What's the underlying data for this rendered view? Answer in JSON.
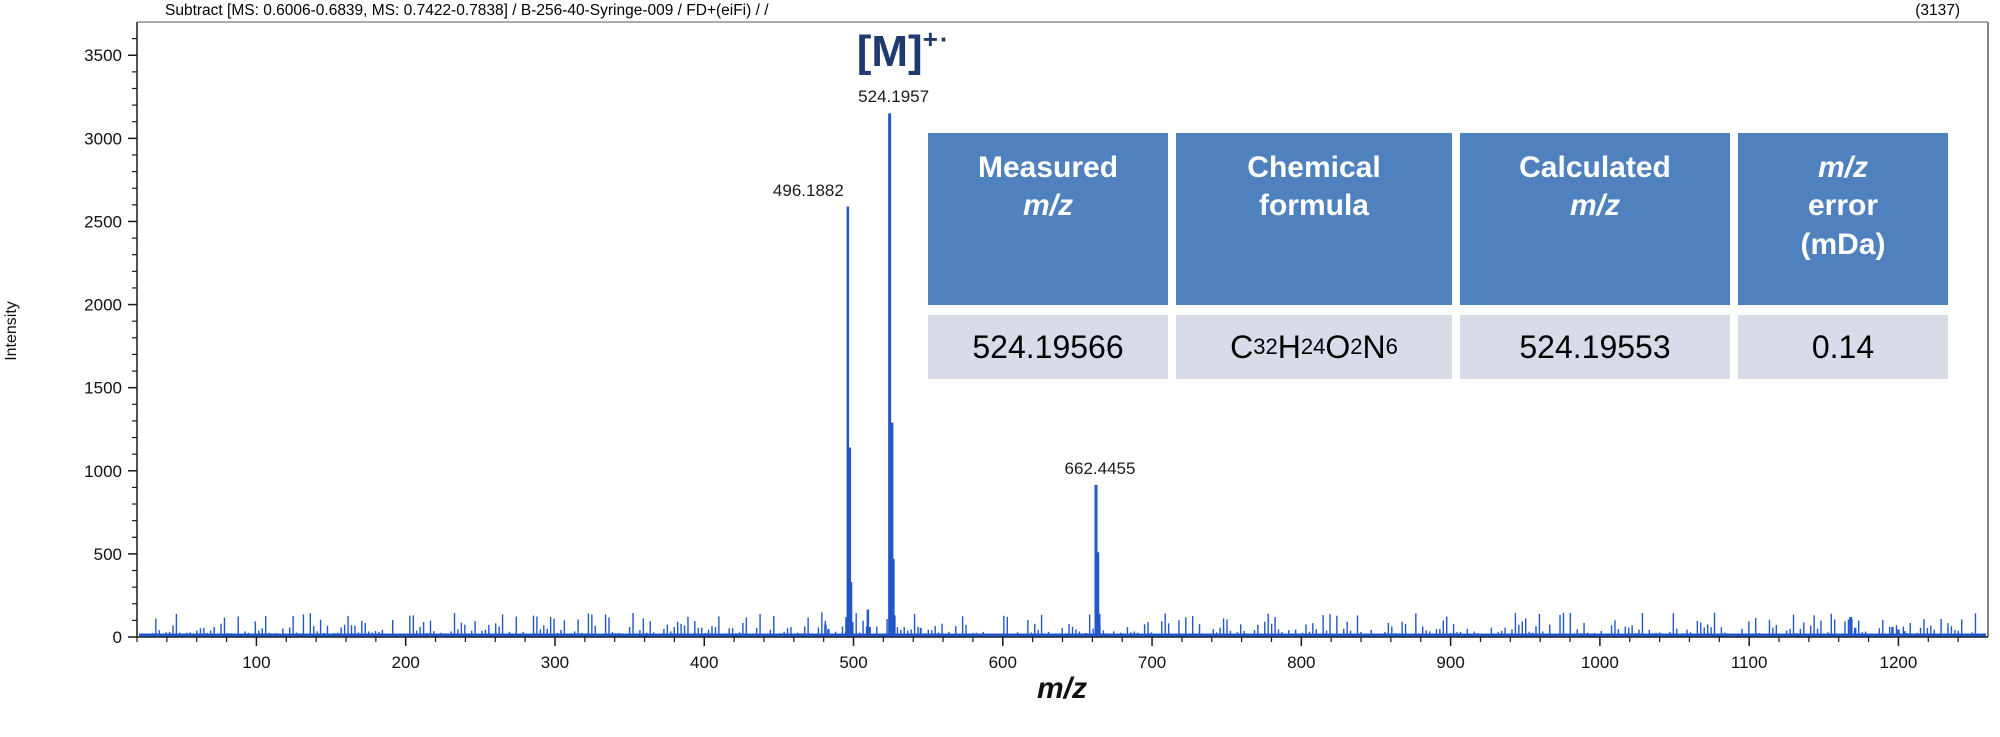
{
  "header": {
    "title": "Subtract [MS: 0.6006-0.6839, MS: 0.7422-0.7838] / B-256-40-Syringe-009 / FD+(eiFi) /  /",
    "scan_count": "(3137)"
  },
  "annotation": {
    "text": "[M]",
    "charge": "+·",
    "anchor_mz": 524.1957
  },
  "chart_data": {
    "type": "bar",
    "subtype": "mass-spectrum-stick-plot",
    "title": "",
    "xlabel": "m/z",
    "ylabel": "Intensity",
    "x_range": [
      20,
      1260
    ],
    "y_range": [
      0,
      3700
    ],
    "x_ticks": [
      100,
      200,
      300,
      400,
      500,
      600,
      700,
      800,
      900,
      1000,
      1100,
      1200
    ],
    "y_ticks": [
      0,
      500,
      1000,
      1500,
      2000,
      2500,
      3000,
      3500
    ],
    "x_minor_step": 20,
    "y_minor_step": 100,
    "grid": false,
    "line_color": "#2257c9",
    "baseline_noise_max": 22,
    "peaks": [
      {
        "mz": 481.2,
        "intensity": 75,
        "w": 2.5
      },
      {
        "mz": 483.2,
        "intensity": 45,
        "w": 2.5
      },
      {
        "mz": 495.3,
        "intensity": 120,
        "w": 2.5
      },
      {
        "mz": 496.1882,
        "intensity": 2590,
        "label": "496.1882",
        "label_align": "right",
        "w": 2.5
      },
      {
        "mz": 497.19,
        "intensity": 1140,
        "w": 3.5
      },
      {
        "mz": 498.19,
        "intensity": 330,
        "w": 3
      },
      {
        "mz": 499.2,
        "intensity": 90,
        "w": 2.5
      },
      {
        "mz": 509.6,
        "intensity": 165,
        "w": 2.5
      },
      {
        "mz": 511.0,
        "intensity": 60,
        "w": 2
      },
      {
        "mz": 524.1957,
        "intensity": 3150,
        "label": "524.1957",
        "w": 3
      },
      {
        "mz": 525.2,
        "intensity": 1290,
        "w": 4.5
      },
      {
        "mz": 526.2,
        "intensity": 470,
        "w": 4
      },
      {
        "mz": 527.2,
        "intensity": 130,
        "w": 3
      },
      {
        "mz": 545.0,
        "intensity": 55,
        "w": 2
      },
      {
        "mz": 662.4455,
        "intensity": 915,
        "label": "662.4455",
        "w": 3
      },
      {
        "mz": 663.45,
        "intensity": 510,
        "w": 3.5
      },
      {
        "mz": 664.45,
        "intensity": 140,
        "w": 3
      },
      {
        "mz": 1168.0,
        "intensity": 120,
        "w": 3
      },
      {
        "mz": 1171.0,
        "intensity": 55,
        "w": 2.5
      },
      {
        "mz": 1196.0,
        "intensity": 60,
        "w": 2.5
      },
      {
        "mz": 1200.0,
        "intensity": 45,
        "w": 2.5
      },
      {
        "mz": 1204.0,
        "intensity": 35,
        "w": 2.5
      }
    ]
  },
  "table": {
    "headers": [
      {
        "line1": "Measured",
        "line2": "m/z"
      },
      {
        "line1": "Chemical",
        "line2": "formula"
      },
      {
        "line1": "Calculated",
        "line2": "m/z"
      },
      {
        "line1": "m/z",
        "line2": "error",
        "line3": "(mDa)"
      }
    ],
    "row": {
      "measured_mz": "524.19566",
      "formula": {
        "segments": [
          [
            "C",
            "32"
          ],
          [
            "H",
            "24"
          ],
          [
            "O",
            "2"
          ],
          [
            "N",
            "6"
          ]
        ]
      },
      "calculated_mz": "524.19553",
      "mz_error": "0.14"
    }
  },
  "colors": {
    "spectrum_blue": "#2257c9",
    "annotation_navy": "#1f3a6e",
    "table_header_bg": "#4e81bd",
    "table_row_bg": "#d8dbe8",
    "table_header_text": "#ffffff",
    "axis_line": "#1a1a1a"
  }
}
